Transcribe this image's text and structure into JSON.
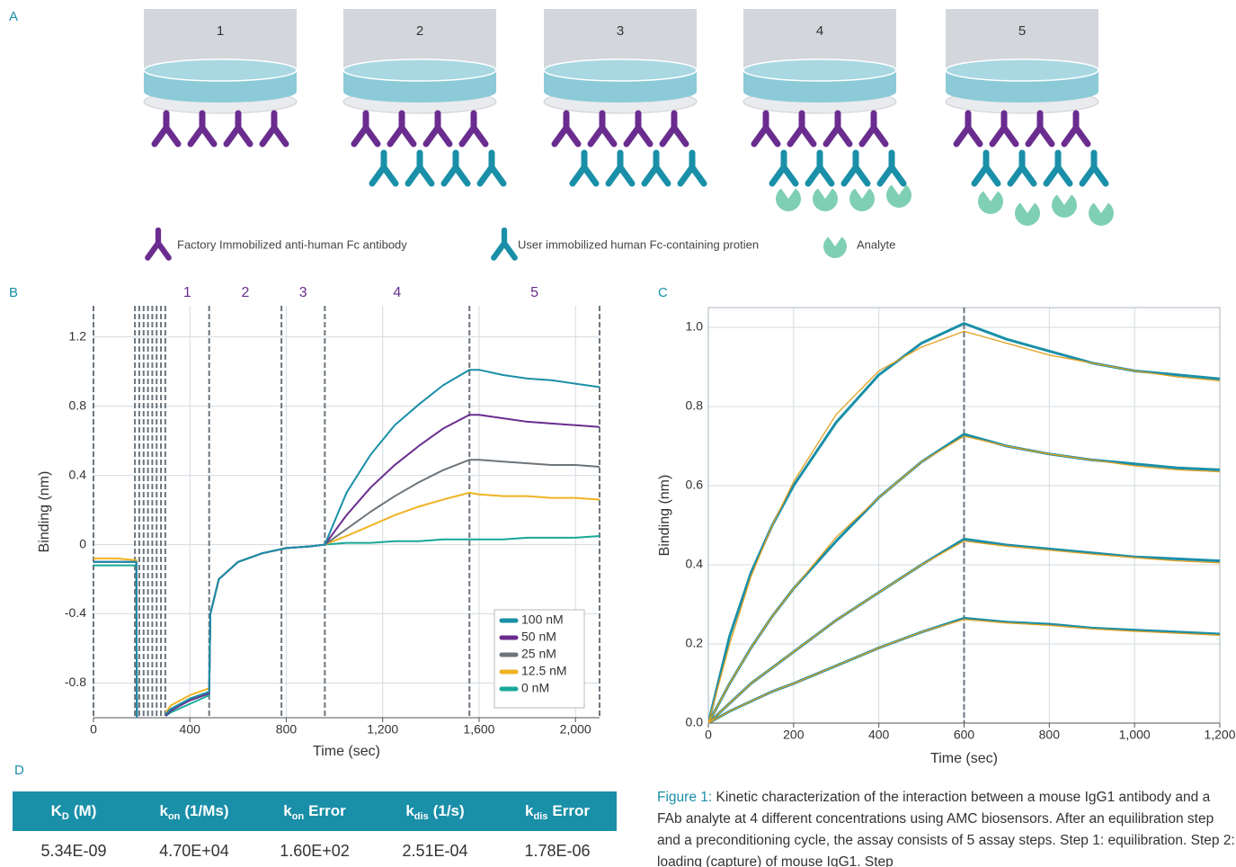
{
  "panel_labels": [
    "A",
    "B",
    "C",
    "D"
  ],
  "diagram": {
    "steps": [
      {
        "label": "1",
        "capture": false,
        "analyte": false
      },
      {
        "label": "2",
        "capture": true,
        "analyte": false
      },
      {
        "label": "3",
        "capture": true,
        "analyte": false
      },
      {
        "label": "4",
        "capture": true,
        "analyte": true
      },
      {
        "label": "5",
        "capture": true,
        "analyte": true
      }
    ],
    "legend": [
      "Factory Immobilized anti-human Fc antibody",
      "User immobilized human Fc-containing protien",
      "Analyte"
    ]
  },
  "chart_data": [
    {
      "type": "line",
      "x_label": "Time (sec)",
      "y_label": "Binding (nm)",
      "xlim": [
        0,
        2100
      ],
      "ylim": [
        -1.0,
        1.38
      ],
      "xticks": [
        0,
        400,
        800,
        {
          "value": 1200,
          "label": "1,200"
        },
        {
          "value": 1600,
          "label": "1,600"
        },
        {
          "value": 2000,
          "label": "2,000"
        }
      ],
      "yticks": [
        -0.8,
        -0.4,
        0,
        0.4,
        0.8,
        1.2
      ],
      "grid": true,
      "frame": false,
      "legend": "lower right",
      "vlines": [
        0,
        172,
        190,
        208,
        226,
        244,
        262,
        280,
        298,
        480,
        780,
        960,
        1560,
        2100
      ],
      "phases": [
        {
          "label": "1",
          "start": 298,
          "end": 480
        },
        {
          "label": "2",
          "start": 480,
          "end": 780
        },
        {
          "label": "3",
          "start": 780,
          "end": 960
        },
        {
          "label": "4",
          "start": 960,
          "end": 1560
        },
        {
          "label": "5",
          "start": 1560,
          "end": 2100
        }
      ],
      "x": [
        0,
        100,
        178,
        180,
        240,
        300,
        320,
        400,
        480,
        485,
        520,
        600,
        700,
        800,
        900,
        960,
        1050,
        1150,
        1250,
        1350,
        1450,
        1560,
        1600,
        1700,
        1800,
        1900,
        2000,
        2100
      ],
      "series": [
        {
          "name": "0 nM",
          "color": "#17a898",
          "values": [
            -0.12,
            -0.12,
            -0.12,
            -1.0,
            null,
            -0.99,
            -0.97,
            -0.92,
            -0.87,
            -0.4,
            -0.2,
            -0.1,
            -0.05,
            -0.02,
            -0.01,
            0,
            0.01,
            0.01,
            0.02,
            0.02,
            0.03,
            0.03,
            0.03,
            0.03,
            0.04,
            0.04,
            0.04,
            0.05
          ]
        },
        {
          "name": "12.5 nM",
          "color": "#f0b323",
          "values": [
            -0.08,
            -0.08,
            -0.09,
            -1.0,
            null,
            -0.97,
            -0.93,
            -0.87,
            -0.83,
            -0.4,
            -0.2,
            -0.1,
            -0.05,
            -0.02,
            -0.01,
            0,
            0.05,
            0.11,
            0.17,
            0.22,
            0.26,
            0.3,
            0.29,
            0.28,
            0.28,
            0.27,
            0.27,
            0.26
          ]
        },
        {
          "name": "25 nM",
          "color": "#6d757a",
          "values": [
            -0.1,
            -0.1,
            -0.1,
            -1.0,
            null,
            -0.98,
            -0.95,
            -0.89,
            -0.85,
            -0.4,
            -0.2,
            -0.1,
            -0.05,
            -0.02,
            -0.01,
            0,
            0.09,
            0.19,
            0.28,
            0.36,
            0.43,
            0.49,
            0.49,
            0.48,
            0.47,
            0.46,
            0.46,
            0.45
          ]
        },
        {
          "name": "50 nM",
          "color": "#6a2d8f",
          "values": [
            -0.1,
            -0.1,
            -0.1,
            -1.0,
            null,
            -0.99,
            -0.96,
            -0.9,
            -0.86,
            -0.4,
            -0.2,
            -0.1,
            -0.05,
            -0.02,
            -0.01,
            0,
            0.17,
            0.33,
            0.46,
            0.57,
            0.67,
            0.75,
            0.75,
            0.73,
            0.71,
            0.7,
            0.69,
            0.68
          ]
        },
        {
          "name": "100 nM",
          "color": "#1a8fa8",
          "values": [
            -0.1,
            -0.1,
            -0.1,
            -1.0,
            null,
            -0.98,
            -0.95,
            -0.89,
            -0.85,
            -0.4,
            -0.2,
            -0.1,
            -0.05,
            -0.02,
            -0.01,
            0,
            0.3,
            0.52,
            0.69,
            0.81,
            0.92,
            1.01,
            1.01,
            0.98,
            0.96,
            0.95,
            0.93,
            0.91
          ]
        }
      ]
    },
    {
      "type": "line",
      "x_label": "Time (sec)",
      "y_label": "Binding (nm)",
      "xlim": [
        0,
        1200
      ],
      "ylim": [
        0,
        1.05
      ],
      "xticks": [
        0,
        200,
        400,
        600,
        800,
        {
          "value": 1000,
          "label": "1,000"
        },
        {
          "value": 1200,
          "label": "1,200"
        }
      ],
      "yticks": [
        {
          "value": 0,
          "label": "0.0"
        },
        0.2,
        0.4,
        0.6,
        0.8,
        {
          "value": 1,
          "label": "1.0"
        }
      ],
      "grid": true,
      "frame": true,
      "vlines": [
        600
      ],
      "x": [
        0,
        50,
        100,
        150,
        200,
        300,
        400,
        500,
        600,
        700,
        800,
        900,
        1000,
        1100,
        1200
      ],
      "series": [
        {
          "color": "#1a8fa8",
          "width": 3,
          "values": [
            0,
            0.22,
            0.38,
            0.5,
            0.6,
            0.76,
            0.88,
            0.96,
            1.01,
            0.97,
            0.94,
            0.91,
            0.89,
            0.88,
            0.87
          ]
        },
        {
          "color": "#1a8fa8",
          "width": 3,
          "values": [
            0,
            0.1,
            0.19,
            0.27,
            0.34,
            0.46,
            0.57,
            0.66,
            0.73,
            0.7,
            0.68,
            0.665,
            0.655,
            0.645,
            0.64
          ]
        },
        {
          "color": "#1a8fa8",
          "width": 3,
          "values": [
            0,
            0.05,
            0.1,
            0.14,
            0.18,
            0.26,
            0.33,
            0.4,
            0.465,
            0.45,
            0.44,
            0.43,
            0.42,
            0.415,
            0.41
          ]
        },
        {
          "color": "#1a8fa8",
          "width": 3,
          "values": [
            0,
            0.03,
            0.055,
            0.08,
            0.1,
            0.145,
            0.19,
            0.23,
            0.265,
            0.255,
            0.25,
            0.24,
            0.235,
            0.23,
            0.225
          ]
        },
        {
          "color": "#e0a020",
          "width": 1.3,
          "values": [
            0,
            0.2,
            0.37,
            0.5,
            0.61,
            0.78,
            0.89,
            0.95,
            0.99,
            0.96,
            0.93,
            0.91,
            0.89,
            0.875,
            0.865
          ]
        },
        {
          "color": "#e0a020",
          "width": 1.3,
          "values": [
            0,
            0.1,
            0.19,
            0.27,
            0.34,
            0.47,
            0.57,
            0.66,
            0.725,
            0.7,
            0.68,
            0.665,
            0.65,
            0.64,
            0.635
          ]
        },
        {
          "color": "#e0a020",
          "width": 1.3,
          "values": [
            0,
            0.05,
            0.1,
            0.14,
            0.18,
            0.26,
            0.33,
            0.4,
            0.46,
            0.447,
            0.437,
            0.427,
            0.418,
            0.41,
            0.405
          ]
        },
        {
          "color": "#e0a020",
          "width": 1.3,
          "values": [
            0,
            0.03,
            0.055,
            0.08,
            0.1,
            0.145,
            0.19,
            0.23,
            0.262,
            0.253,
            0.247,
            0.238,
            0.232,
            0.227,
            0.222
          ]
        }
      ]
    }
  ],
  "table": {
    "headers": [
      {
        "symbol": "K",
        "subscript": "D",
        "unit": "(M)"
      },
      {
        "symbol": "k",
        "subscript": "on",
        "unit": "(1/Ms)"
      },
      {
        "symbol": "k",
        "subscript": "on",
        "unit": "Error"
      },
      {
        "symbol": "k",
        "subscript": "dis",
        "unit": "(1/s)"
      },
      {
        "symbol": "k",
        "subscript": "dis",
        "unit": "Error"
      }
    ],
    "rows": [
      [
        "5.34E-09",
        "4.70E+04",
        "1.60E+02",
        "2.51E-04",
        "1.78E-06"
      ]
    ]
  },
  "caption": {
    "label": "Figure 1:",
    "text": "Kinetic characterization of the interaction between a mouse IgG1 antibody and a FAb analyte at 4 different concentrations using AMC biosensors. After an equilibration step and a preconditioning cycle, the assay consists of 5 assay steps. Step 1: equilibration. Step 2: loading (capture) of mouse IgG1. Step"
  }
}
